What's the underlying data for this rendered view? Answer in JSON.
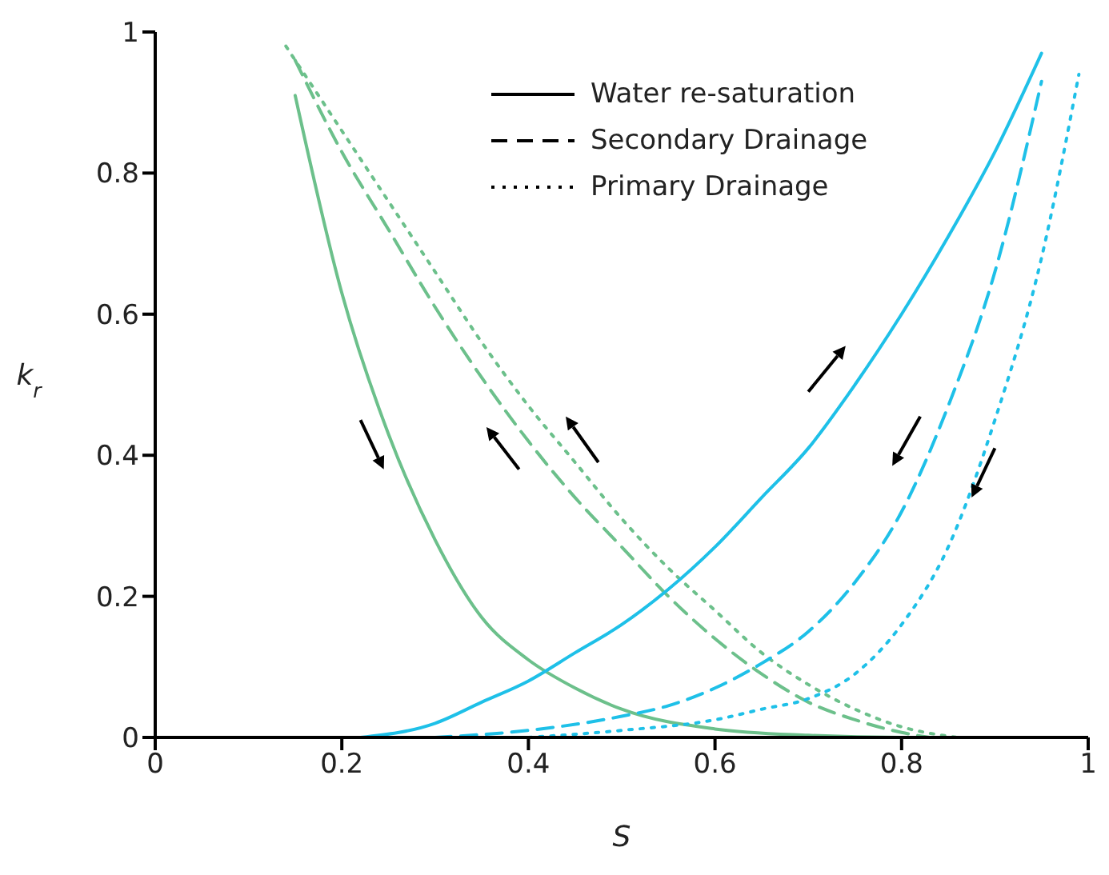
{
  "chart_data": {
    "type": "line",
    "xlabel": "S",
    "ylabel": "k$_{r}$",
    "xlim": [
      0,
      1
    ],
    "xticks": [
      0,
      0.2,
      0.4,
      0.6,
      0.8,
      1
    ],
    "ylim": [
      0,
      1
    ],
    "yticks": [
      0,
      0.2,
      0.4,
      0.6,
      0.8,
      1
    ],
    "grid": false,
    "marker": "none",
    "annotations": [
      "Water re-saturation",
      "Secondary Drainage",
      "Primary Drainage"
    ],
    "series": [
      {
        "color": "#6cc08b",
        "line_style": "solid",
        "x": [
          0.15,
          0.2,
          0.25,
          0.3,
          0.35,
          0.4,
          0.45,
          0.5,
          0.6,
          0.7,
          0.8,
          1.0
        ],
        "values": [
          0.91,
          0.63,
          0.43,
          0.28,
          0.17,
          0.11,
          0.07,
          0.04,
          0.012,
          0.003,
          0,
          0
        ]
      },
      {
        "color": "#6cc08b",
        "line_style": "dashed",
        "x": [
          0.15,
          0.2,
          0.25,
          0.3,
          0.35,
          0.4,
          0.45,
          0.5,
          0.55,
          0.6,
          0.65,
          0.7,
          0.75,
          0.8,
          0.83
        ],
        "values": [
          0.96,
          0.83,
          0.72,
          0.61,
          0.51,
          0.42,
          0.34,
          0.27,
          0.2,
          0.14,
          0.09,
          0.05,
          0.025,
          0.007,
          0
        ]
      },
      {
        "color": "#6cc08b",
        "line_style": "dotted",
        "x": [
          0.14,
          0.2,
          0.25,
          0.3,
          0.35,
          0.4,
          0.45,
          0.5,
          0.55,
          0.6,
          0.65,
          0.7,
          0.75,
          0.8,
          0.86
        ],
        "values": [
          0.98,
          0.86,
          0.76,
          0.66,
          0.56,
          0.47,
          0.39,
          0.31,
          0.24,
          0.18,
          0.12,
          0.075,
          0.04,
          0.015,
          0
        ]
      },
      {
        "color": "#1ec0e8",
        "line_style": "solid",
        "x": [
          0.22,
          0.3,
          0.35,
          0.4,
          0.45,
          0.5,
          0.55,
          0.6,
          0.65,
          0.7,
          0.75,
          0.8,
          0.85,
          0.9,
          0.95
        ],
        "values": [
          0,
          0.02,
          0.05,
          0.08,
          0.12,
          0.16,
          0.21,
          0.27,
          0.34,
          0.41,
          0.5,
          0.6,
          0.71,
          0.83,
          0.97
        ]
      },
      {
        "color": "#1ec0e8",
        "line_style": "dashed",
        "x": [
          0.3,
          0.4,
          0.5,
          0.55,
          0.6,
          0.65,
          0.7,
          0.75,
          0.8,
          0.85,
          0.9,
          0.95
        ],
        "values": [
          0,
          0.01,
          0.03,
          0.045,
          0.07,
          0.105,
          0.15,
          0.22,
          0.32,
          0.47,
          0.66,
          0.93
        ]
      },
      {
        "color": "#1ec0e8",
        "line_style": "dotted",
        "x": [
          0.4,
          0.5,
          0.6,
          0.65,
          0.7,
          0.75,
          0.8,
          0.85,
          0.9,
          0.95,
          0.99
        ],
        "values": [
          0,
          0.01,
          0.025,
          0.04,
          0.055,
          0.09,
          0.16,
          0.27,
          0.45,
          0.68,
          0.94
        ]
      }
    ]
  }
}
